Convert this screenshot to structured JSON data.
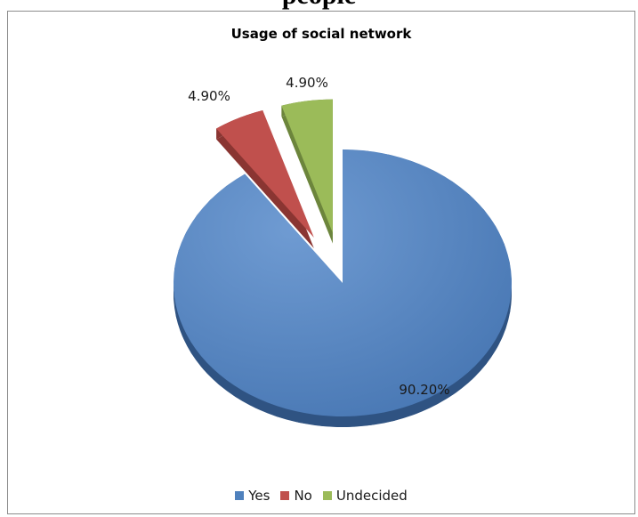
{
  "document": {
    "header_fragment": "people"
  },
  "chart_data": {
    "type": "pie",
    "title": "Usage of social network",
    "categories": [
      "Yes",
      "No",
      "Undecided"
    ],
    "values": [
      90.2,
      4.9,
      4.9
    ],
    "data_labels": [
      "90.20%",
      "4.90%",
      "4.90%"
    ],
    "colors": [
      "#4f81bd",
      "#c0504d",
      "#9bbb59"
    ],
    "exploded": [
      false,
      true,
      true
    ],
    "style": "3d",
    "legend_position": "bottom"
  }
}
